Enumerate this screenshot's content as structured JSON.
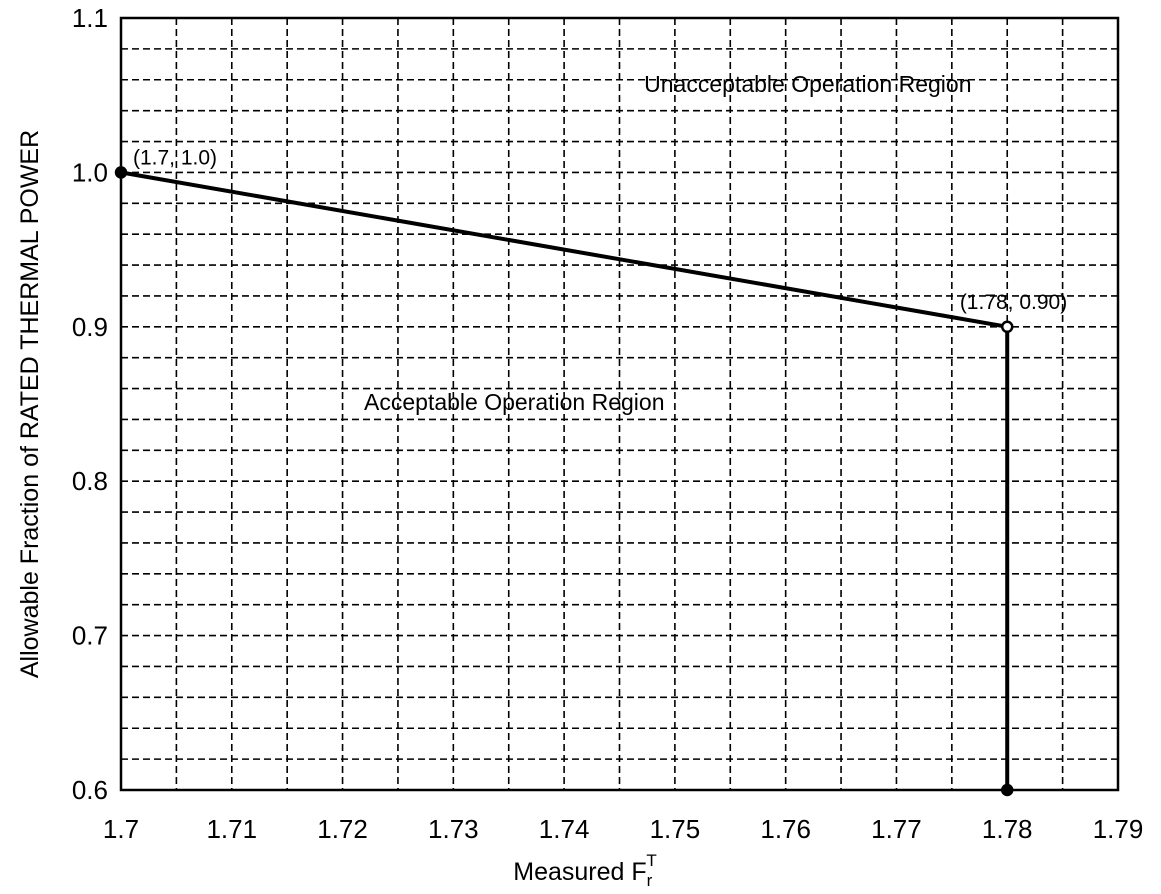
{
  "chart_data": {
    "type": "line",
    "xlabel_main": "Measured F",
    "xlabel_sub": "r",
    "xlabel_sup": "T",
    "ylabel": "Allowable Fraction of RATED THERMAL POWER",
    "xlim": [
      1.7,
      1.79
    ],
    "ylim": [
      0.6,
      1.1
    ],
    "x_ticks": [
      "1.7",
      "1.71",
      "1.72",
      "1.73",
      "1.74",
      "1.75",
      "1.76",
      "1.77",
      "1.78",
      "1.79"
    ],
    "y_ticks": [
      "0.6",
      "0.7",
      "0.8",
      "0.9",
      "1.0",
      "1.1"
    ],
    "x_tick_values": [
      1.7,
      1.71,
      1.72,
      1.73,
      1.74,
      1.75,
      1.76,
      1.77,
      1.78,
      1.79
    ],
    "y_tick_values": [
      0.6,
      0.7,
      0.8,
      0.9,
      1.0,
      1.1
    ],
    "x_grid_step": 0.005,
    "y_grid_step": 0.02,
    "grid": true,
    "series": [
      {
        "x": [
          1.7,
          1.78,
          1.78
        ],
        "y": [
          1.0,
          0.9,
          0.6
        ]
      }
    ],
    "markers": [
      {
        "x": 1.7,
        "y": 1.0,
        "style": "filled"
      },
      {
        "x": 1.78,
        "y": 0.9,
        "style": "open"
      },
      {
        "x": 1.78,
        "y": 0.6,
        "style": "filled"
      }
    ],
    "annotations": [
      {
        "text": "(1.7, 1.0)",
        "x": 1.7,
        "y": 1.0
      },
      {
        "text": "(1.78, 0.90)",
        "x": 1.78,
        "y": 0.9
      }
    ],
    "regions": [
      {
        "text": "Unacceptable Operation Region",
        "x": 1.762,
        "y": 1.052
      },
      {
        "text": "Acceptable Operation Region",
        "x": 1.7355,
        "y": 0.846
      }
    ]
  }
}
